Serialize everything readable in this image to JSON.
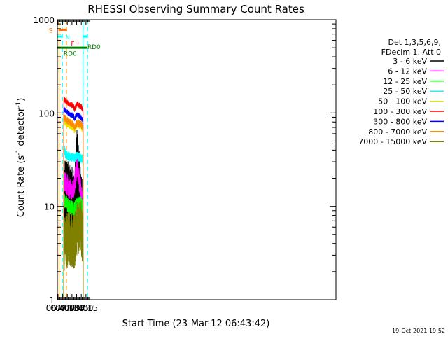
{
  "chart_data": {
    "type": "line",
    "title": "RHESSI Observing Summary Count Rates",
    "xlabel": "Start Time (23-Mar-12 06:43:42)",
    "ylabel_main": "Count Rate (s",
    "ylabel_sup": "-1",
    "ylabel_rest": " detector",
    "ylabel_end": ")",
    "x_range_min": [
      403,
      1299
    ],
    "y_range": [
      1,
      1000
    ],
    "y_scale": "log",
    "x_ticks": [
      {
        "min": 405,
        "label": "06:45"
      },
      {
        "min": 420,
        "label": "07:00"
      },
      {
        "min": 435,
        "label": "07:15"
      },
      {
        "min": 450,
        "label": "07:30"
      },
      {
        "min": 465,
        "label": "07:45"
      },
      {
        "min": 480,
        "label": "08:00"
      },
      {
        "min": 495,
        "label": "08:15"
      }
    ],
    "y_ticks": [
      {
        "value": 1,
        "label": "1"
      },
      {
        "value": 10,
        "label": "10"
      },
      {
        "value": 100,
        "label": "100"
      },
      {
        "value": 1000,
        "label": "1000"
      }
    ],
    "legend_header": [
      "Det 1,3,5,6,9,",
      "FDecim 1, Att 0"
    ],
    "legend_position": "right",
    "series": [
      {
        "name": "3 - 6 keV",
        "color": "#000000",
        "base": 12,
        "jitter": 0.45,
        "x": [
          424,
          440,
          458,
          466,
          478,
          484,
          485.5
        ],
        "y": [
          13,
          12,
          8,
          25,
          10,
          7,
          1.5
        ]
      },
      {
        "name": "6 - 12 keV",
        "color": "#ff00ff",
        "base": 17,
        "jitter": 0.12,
        "x": [
          424,
          440,
          450,
          458,
          466,
          478,
          484,
          485.5
        ],
        "y": [
          19,
          16,
          14,
          17,
          28,
          15,
          10,
          5
        ]
      },
      {
        "name": "12 - 25 keV",
        "color": "#00ff00",
        "base": 11,
        "jitter": 0.08,
        "x": [
          424,
          440,
          458,
          466,
          478,
          484,
          485.5
        ],
        "y": [
          12,
          10,
          9.5,
          10.5,
          11,
          10,
          8
        ]
      },
      {
        "name": "25 - 50 keV",
        "color": "#00ffff",
        "base": 33,
        "jitter": 0.05,
        "x": [
          424,
          430,
          440,
          458,
          466,
          478,
          484,
          485.5
        ],
        "y": [
          42,
          36,
          34,
          33,
          35,
          33,
          32,
          30
        ]
      },
      {
        "name": "50 - 100 keV",
        "color": "#e6e600",
        "base": 70,
        "jitter": 0.04,
        "x": [
          424,
          440,
          454,
          458,
          466,
          478,
          484,
          485.5
        ],
        "y": [
          82,
          74,
          70,
          66,
          74,
          73,
          68,
          64
        ]
      },
      {
        "name": "100 - 300 keV",
        "color": "#ff0000",
        "base": 110,
        "jitter": 0.03,
        "x": [
          424,
          440,
          454,
          458,
          466,
          478,
          484,
          485.5
        ],
        "y": [
          140,
          125,
          120,
          110,
          125,
          118,
          112,
          104
        ]
      },
      {
        "name": "300 - 800 keV",
        "color": "#0000ff",
        "base": 90,
        "jitter": 0.03,
        "x": [
          424,
          440,
          454,
          458,
          466,
          478,
          484,
          485.5
        ],
        "y": [
          110,
          98,
          94,
          87,
          96,
          90,
          84,
          80
        ]
      },
      {
        "name": "800 - 7000 keV",
        "color": "#ff8c00",
        "base": 75,
        "jitter": 0.04,
        "x": [
          424,
          440,
          454,
          458,
          466,
          478,
          484,
          485.5
        ],
        "y": [
          90,
          80,
          76,
          70,
          78,
          76,
          72,
          68
        ]
      },
      {
        "name": "7000 - 15000 keV",
        "color": "#808000",
        "base": 5,
        "jitter": 0.3,
        "x": [
          424,
          440,
          458,
          466,
          478,
          484,
          485.5
        ],
        "y": [
          4,
          4.5,
          4.2,
          6,
          6,
          5,
          4
        ]
      }
    ],
    "flags": [
      {
        "label": "S",
        "color": "#ff6600",
        "y_value": 780,
        "x_start": 407,
        "x_end": 434,
        "line": "solid"
      },
      {
        "label": "N",
        "color": "#00ffff",
        "y_value": 660,
        "x_start": 403,
        "x_end": 419,
        "line": "solid"
      },
      {
        "label": "N",
        "color": "#00ffff",
        "y_value": 660,
        "x_start": 485.5,
        "x_end": 500,
        "line": "solid"
      },
      {
        "label": "F",
        "color": "#ff0000",
        "y_value": 560,
        "x_start": 469,
        "x_end": 471,
        "line": "solid"
      },
      {
        "label": "RD0",
        "color": "#007f00",
        "y_value": 500,
        "x_start": 403,
        "x_end": 500,
        "line": "solid"
      },
      {
        "label": "RD6",
        "color": "#007f00",
        "y_value": 440,
        "x_start": 486,
        "x_end": 487,
        "line": "solid"
      }
    ],
    "vlines": [
      {
        "min": 408.5,
        "color": "#ff8c00",
        "style": "solid"
      },
      {
        "min": 419.0,
        "color": "#00ffff",
        "style": "dashed"
      },
      {
        "min": 432.0,
        "color": "#ff8c00",
        "style": "dashed"
      },
      {
        "min": 485.3,
        "color": "#00ffff",
        "style": "solid"
      },
      {
        "min": 500.0,
        "color": "#00ffff",
        "style": "dashed"
      }
    ],
    "data_window_min": [
      424,
      486
    ]
  },
  "footer": {
    "timestamp": "19-Oct-2021 19:52"
  }
}
